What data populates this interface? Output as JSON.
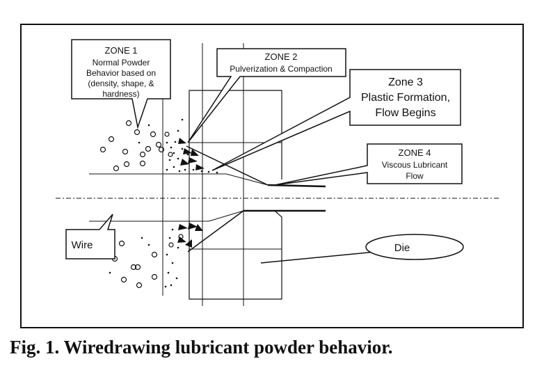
{
  "zones": {
    "zone1": {
      "title": "ZONE 1",
      "lines": [
        "Normal Powder",
        "Behavior based on",
        "(density, shape,  &",
        "hardness)"
      ]
    },
    "zone2": {
      "title": "ZONE 2",
      "lines": [
        "Pulverization & Compaction"
      ]
    },
    "zone3": {
      "title": "Zone 3",
      "lines": [
        "Plastic Formation,",
        "Flow Begins"
      ]
    },
    "zone4": {
      "title": "ZONE 4",
      "lines": [
        "Viscous Lubricant",
        "Flow"
      ]
    }
  },
  "labels": {
    "wire": "Wire",
    "die": "Die"
  },
  "caption": "Fig. 1. Wiredrawing lubricant powder behavior.",
  "colors": {
    "ink": "#111111",
    "background": "#ffffff"
  }
}
